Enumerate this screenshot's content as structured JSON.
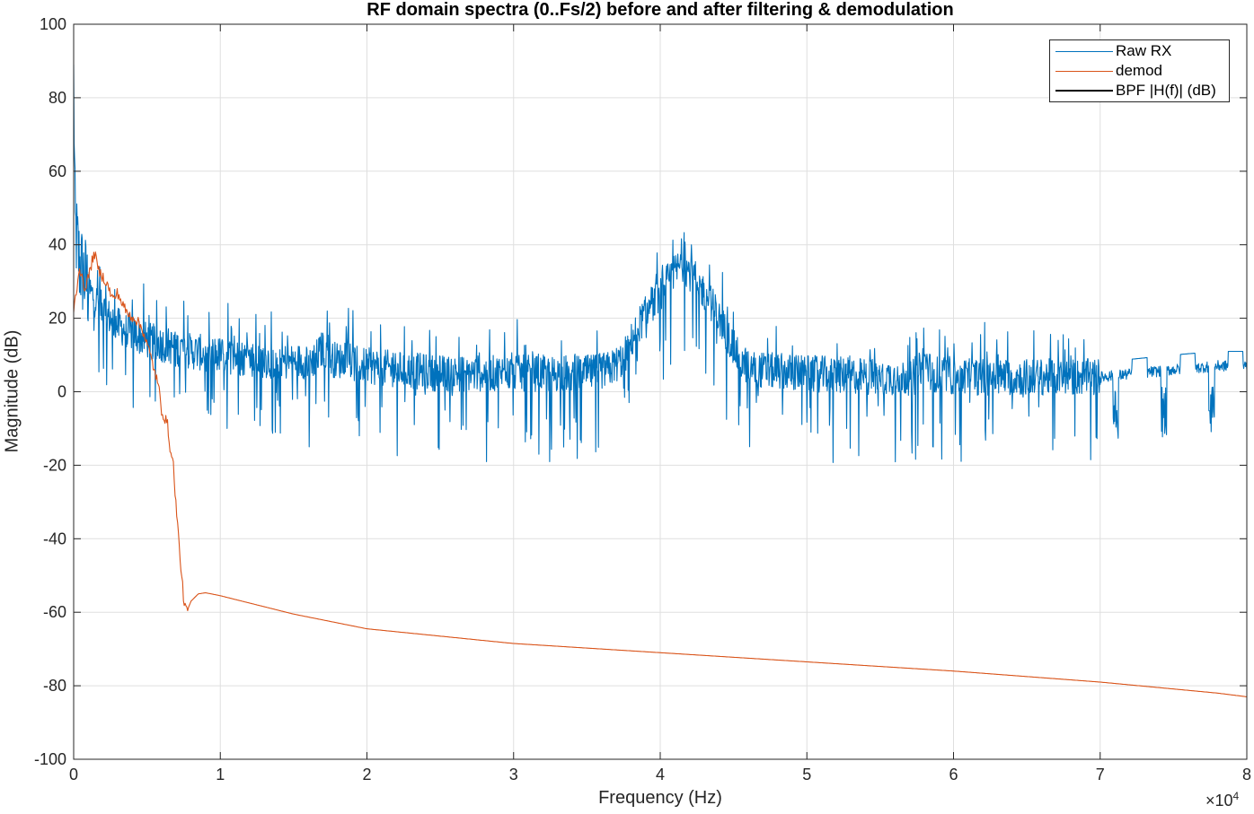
{
  "chart_data": {
    "type": "line",
    "title": "RF domain spectra (0..Fs/2) before and after filtering & demodulation",
    "xlabel": "Frequency (Hz)",
    "ylabel": "Magnitude (dB)",
    "x_exponent_label": "×10",
    "x_exponent_power": "4",
    "xlim": [
      0,
      80000
    ],
    "ylim": [
      -100,
      100
    ],
    "x_ticks": [
      0,
      10000,
      20000,
      30000,
      40000,
      50000,
      60000,
      70000,
      80000
    ],
    "x_tick_labels": [
      "0",
      "1",
      "2",
      "3",
      "4",
      "5",
      "6",
      "7",
      "8"
    ],
    "y_ticks": [
      -100,
      -80,
      -60,
      -40,
      -20,
      0,
      20,
      40,
      60,
      80,
      100
    ],
    "y_tick_labels": [
      "-100",
      "-80",
      "-60",
      "-40",
      "-20",
      "0",
      "20",
      "40",
      "60",
      "80",
      "100"
    ],
    "grid": true,
    "legend_position": "top-right",
    "series": [
      {
        "name": "Raw RX",
        "color": "#0072BD",
        "noisy": true,
        "points": [
          [
            0,
            85
          ],
          [
            100,
            45
          ],
          [
            400,
            35
          ],
          [
            1000,
            28
          ],
          [
            2000,
            22
          ],
          [
            3000,
            18
          ],
          [
            5000,
            14
          ],
          [
            8000,
            11
          ],
          [
            12000,
            9
          ],
          [
            15000,
            8
          ],
          [
            16500,
            9
          ],
          [
            17000,
            12
          ],
          [
            17500,
            9
          ],
          [
            20000,
            7
          ],
          [
            25000,
            5
          ],
          [
            30000,
            5
          ],
          [
            33000,
            5
          ],
          [
            35000,
            5
          ],
          [
            36500,
            6
          ],
          [
            37500,
            9
          ],
          [
            38500,
            18
          ],
          [
            39500,
            24
          ],
          [
            40500,
            30
          ],
          [
            41500,
            35
          ],
          [
            42500,
            30
          ],
          [
            43500,
            24
          ],
          [
            44500,
            16
          ],
          [
            45500,
            8
          ],
          [
            46500,
            6
          ],
          [
            50000,
            5
          ],
          [
            55000,
            4
          ],
          [
            57500,
            4
          ],
          [
            58000,
            9
          ],
          [
            58500,
            5
          ],
          [
            60000,
            4
          ],
          [
            65000,
            4
          ],
          [
            70000,
            4
          ],
          [
            72500,
            5
          ],
          [
            75000,
            6
          ],
          [
            78000,
            7
          ],
          [
            80000,
            7
          ]
        ]
      },
      {
        "name": "demod",
        "color": "#D95319",
        "noisy": false,
        "points": [
          [
            0,
            22
          ],
          [
            400,
            34
          ],
          [
            700,
            28
          ],
          [
            1000,
            31
          ],
          [
            1400,
            38
          ],
          [
            1700,
            33
          ],
          [
            2200,
            30
          ],
          [
            2700,
            25
          ],
          [
            3000,
            27
          ],
          [
            3300,
            24
          ],
          [
            3700,
            21
          ],
          [
            4200,
            20
          ],
          [
            4700,
            17
          ],
          [
            5000,
            13
          ],
          [
            5500,
            6
          ],
          [
            5800,
            1
          ],
          [
            6000,
            -5
          ],
          [
            6400,
            -9
          ],
          [
            6600,
            -16
          ],
          [
            6800,
            -20
          ],
          [
            7000,
            -32
          ],
          [
            7200,
            -42
          ],
          [
            7400,
            -52
          ],
          [
            7550,
            -58
          ],
          [
            7700,
            -60
          ],
          [
            8000,
            -57
          ],
          [
            8500,
            -55
          ],
          [
            9000,
            -54.7
          ],
          [
            10000,
            -55.5
          ],
          [
            12000,
            -57.5
          ],
          [
            15000,
            -60.5
          ],
          [
            20000,
            -64.5
          ],
          [
            30000,
            -68.5
          ],
          [
            40000,
            -71
          ],
          [
            50000,
            -73.5
          ],
          [
            60000,
            -76
          ],
          [
            70000,
            -79
          ],
          [
            78000,
            -82
          ],
          [
            80000,
            -83
          ]
        ]
      },
      {
        "name": "BPF |H(f)| (dB)",
        "color": "#000000",
        "points": []
      }
    ]
  }
}
